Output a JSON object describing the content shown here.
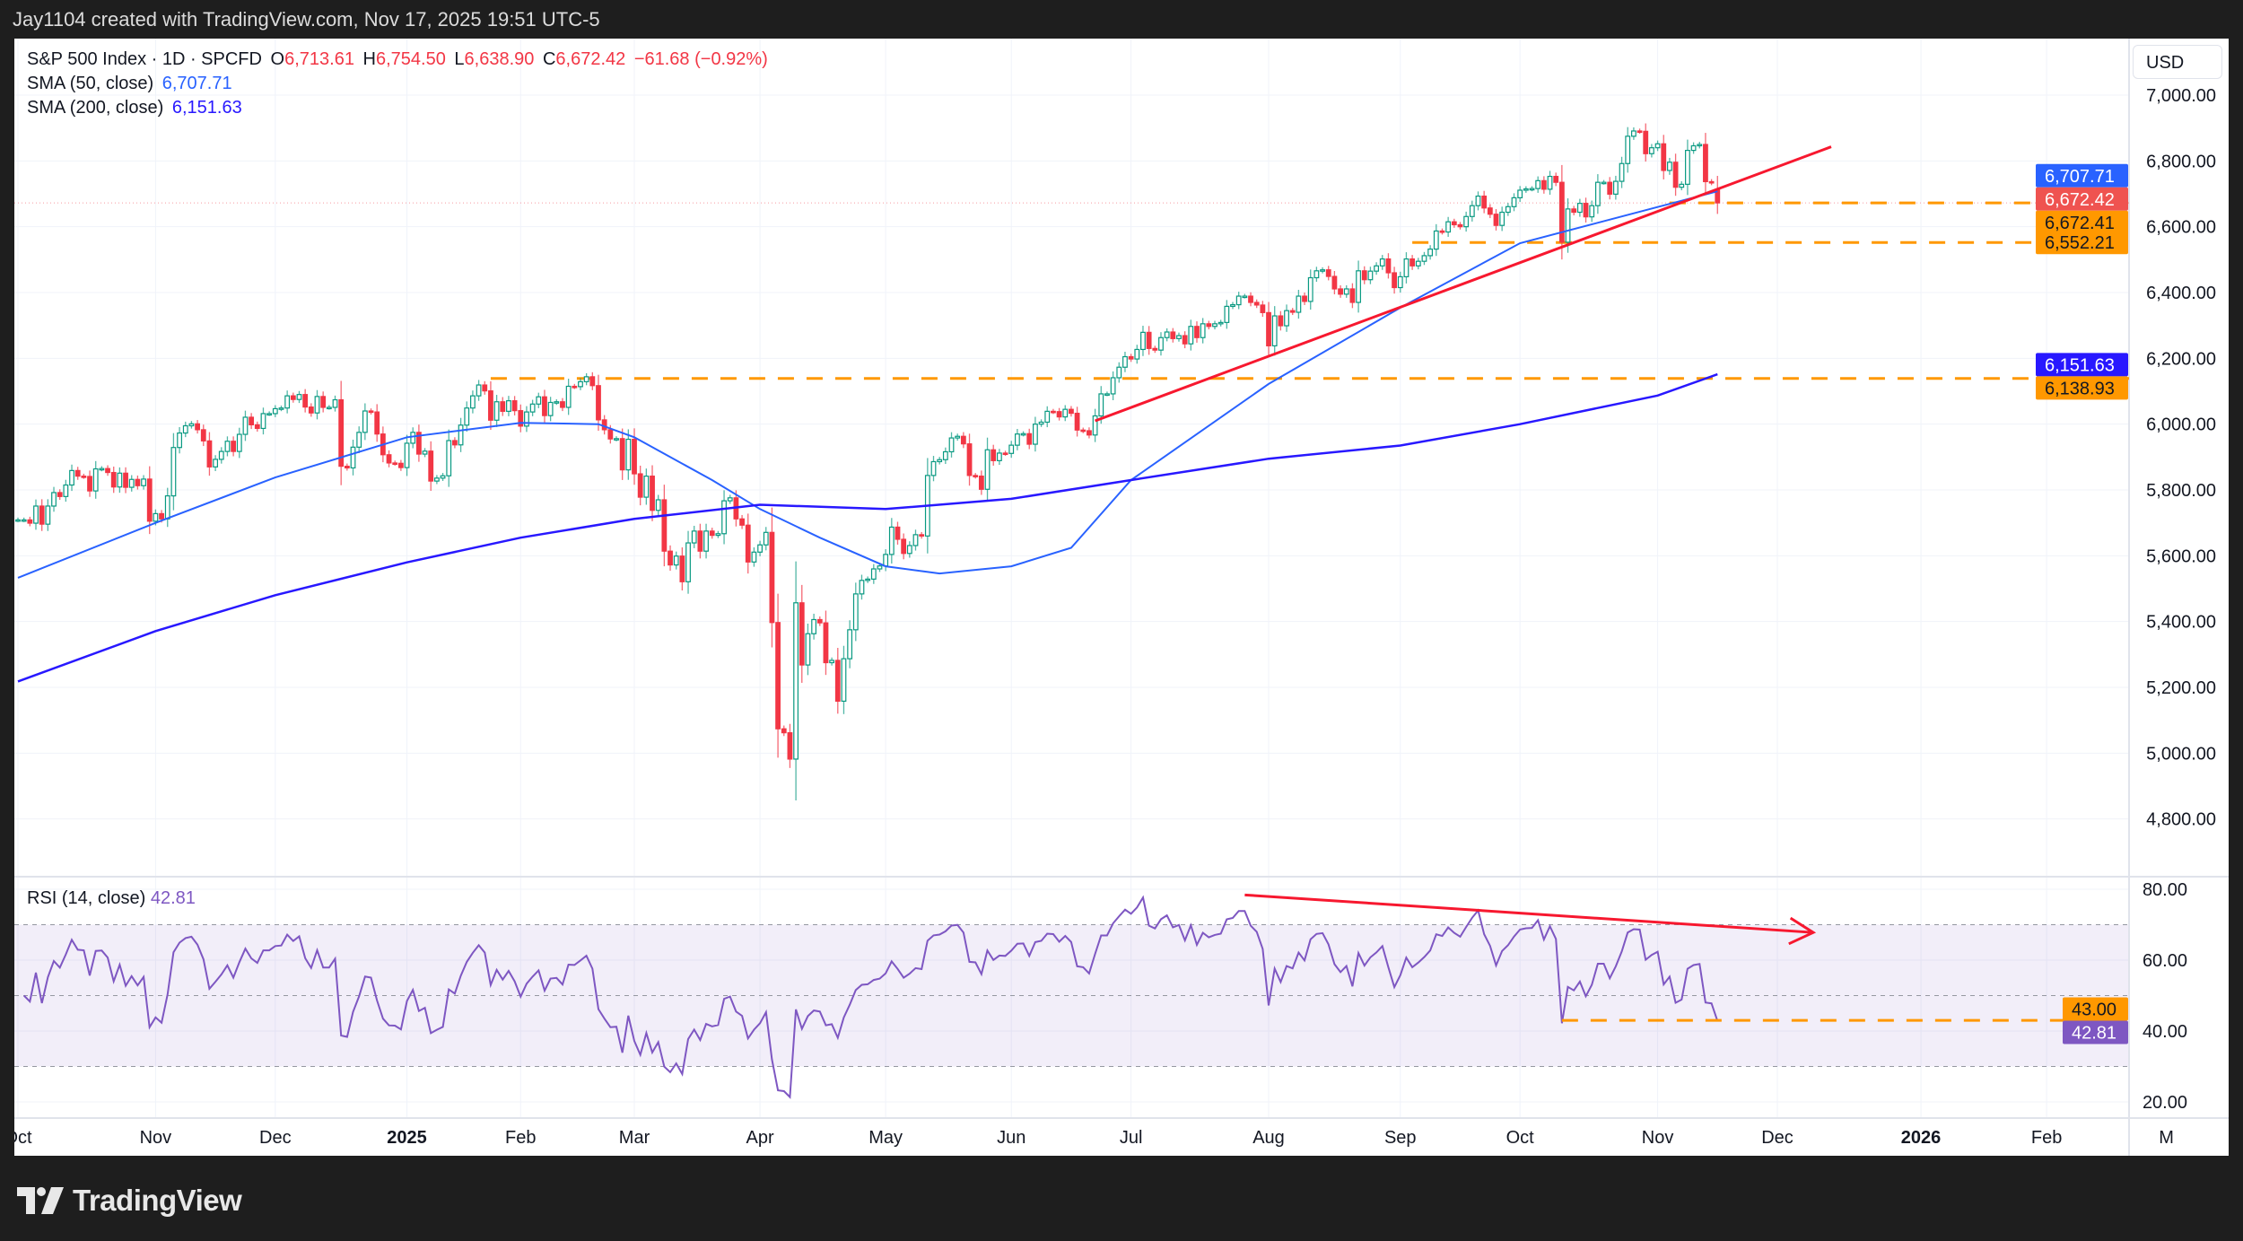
{
  "topbar": {
    "text": "Jay1104 created with TradingView.com, Nov 17, 2025 19:51 UTC-5"
  },
  "legend": {
    "symbol": "S&P 500 Index · 1D · SPCFD",
    "open_label": "O",
    "open": "6,713.61",
    "high_label": "H",
    "high": "6,754.50",
    "low_label": "L",
    "low": "6,638.90",
    "close_label": "C",
    "close": "6,672.42",
    "change": "−61.68 (−0.92%)",
    "sma50_label": "SMA (50, close)",
    "sma50_value": "6,707.71",
    "sma200_label": "SMA (200, close)",
    "sma200_value": "6,151.63",
    "rsi_label": "RSI (14, close)",
    "rsi_value": "42.81"
  },
  "currency": "USD",
  "brand": {
    "name": "TradingView",
    "icon": "tradingview-logo"
  },
  "colors": {
    "up": "#089981",
    "down": "#f23645",
    "sma50": "#2962ff",
    "sma200": "#2818ff",
    "rsi": "#7e57c2",
    "levels": "#ff9800",
    "trendline": "#f7182f"
  },
  "chart_data": {
    "type": "candlestick",
    "last_bar": {
      "date": "2025-11-17",
      "open": 6713.61,
      "high": 6754.5,
      "low": 6638.9,
      "close": 6672.42
    },
    "closes_by_month": {
      "2024-10": [
        5709,
        5709,
        5699,
        5751,
        5696,
        5751,
        5792,
        5780,
        5815,
        5859,
        5842,
        5841,
        5797,
        5864,
        5865,
        5853,
        5809,
        5851,
        5808,
        5832,
        5813,
        5833,
        5705
      ],
      "2024-11": [
        5728,
        5712,
        5782,
        5929,
        5973,
        5995,
        6001,
        5983,
        5949,
        5870,
        5893,
        5917,
        5948,
        5917,
        5969,
        6021,
        5998,
        5987,
        6032,
        6032
      ],
      "2024-12": [
        6047,
        6049,
        6086,
        6075,
        6090,
        6052,
        6034,
        6084,
        6051,
        6051,
        6074,
        5872,
        5867,
        5930,
        5975,
        6040,
        6037,
        5970,
        5907,
        5882,
        5881
      ],
      "2025-01": [
        5868,
        5942,
        5975,
        5909,
        5918,
        5827,
        5836,
        5843,
        5950,
        5937,
        5997,
        6049,
        6086,
        6119,
        6101,
        6012,
        6068,
        6039,
        6071,
        6041
      ],
      "2025-02": [
        5994,
        6037,
        6061,
        6083,
        6026,
        6066,
        6068,
        6051,
        6115,
        6114,
        6129,
        6144,
        6117,
        6013,
        5983,
        5955,
        5956,
        5861,
        5954
      ],
      "2025-03": [
        5849,
        5778,
        5842,
        5738,
        5770,
        5614,
        5572,
        5599,
        5521,
        5639,
        5675,
        5614,
        5675,
        5662,
        5667,
        5767,
        5776,
        5712,
        5693,
        5581,
        5611
      ],
      "2025-04": [
        5633,
        5671,
        5397,
        5074,
        5062,
        4982,
        5457,
        5268,
        5363,
        5406,
        5396,
        5275,
        5282,
        5158,
        5287,
        5375,
        5484,
        5525,
        5529,
        5560,
        5569
      ],
      "2025-05": [
        5604,
        5687,
        5650,
        5607,
        5631,
        5664,
        5660,
        5844,
        5886,
        5892,
        5916,
        5958,
        5963,
        5940,
        5844,
        5842,
        5802,
        5922,
        5889,
        5912,
        5911
      ],
      "2025-06": [
        5936,
        5970,
        5971,
        5939,
        6000,
        6006,
        6039,
        6038,
        6022,
        6045,
        6033,
        5982,
        5980,
        5967,
        6025,
        6092,
        6092,
        6141,
        6173,
        6205
      ],
      "2025-07": [
        6198,
        6227,
        6279,
        6230,
        6225,
        6263,
        6280,
        6260,
        6269,
        6244,
        6297,
        6263,
        6305,
        6297,
        6305,
        6309,
        6358,
        6363,
        6389,
        6389,
        6370,
        6362,
        6339
      ],
      "2025-08": [
        6238,
        6329,
        6299,
        6345,
        6340,
        6389,
        6373,
        6445,
        6466,
        6469,
        6449,
        6411,
        6395,
        6411,
        6370,
        6466,
        6439,
        6465,
        6481,
        6502,
        6460
      ],
      "2025-09": [
        6415,
        6448,
        6502,
        6481,
        6495,
        6512,
        6532,
        6587,
        6584,
        6615,
        6606,
        6600,
        6631,
        6664,
        6693,
        6657,
        6638,
        6604,
        6644,
        6661,
        6688
      ],
      "2025-10": [
        6711,
        6715,
        6716,
        6740,
        6714,
        6753,
        6735,
        6553,
        6654,
        6644,
        6671,
        6630,
        6664,
        6735,
        6735,
        6699,
        6738,
        6792,
        6875,
        6891,
        6890,
        6822,
        6840
      ],
      "2025-11": [
        6852,
        6771,
        6796,
        6720,
        6729,
        6832,
        6846,
        6850,
        6737,
        6734,
        6672.42
      ]
    },
    "sma50": [
      {
        "date": "2024-10-01",
        "value": 5533
      },
      {
        "date": "2024-11-01",
        "value": 5700
      },
      {
        "date": "2024-12-02",
        "value": 5838
      },
      {
        "date": "2025-01-02",
        "value": 5960
      },
      {
        "date": "2025-02-03",
        "value": 6004
      },
      {
        "date": "2025-02-20",
        "value": 6000
      },
      {
        "date": "2025-03-03",
        "value": 5960
      },
      {
        "date": "2025-03-20",
        "value": 5830
      },
      {
        "date": "2025-04-01",
        "value": 5742
      },
      {
        "date": "2025-04-15",
        "value": 5655
      },
      {
        "date": "2025-05-01",
        "value": 5568
      },
      {
        "date": "2025-05-14",
        "value": 5546
      },
      {
        "date": "2025-06-02",
        "value": 5568
      },
      {
        "date": "2025-06-16",
        "value": 5624
      },
      {
        "date": "2025-07-01",
        "value": 5830
      },
      {
        "date": "2025-08-01",
        "value": 6122
      },
      {
        "date": "2025-09-02",
        "value": 6354
      },
      {
        "date": "2025-10-01",
        "value": 6550
      },
      {
        "date": "2025-11-03",
        "value": 6660
      },
      {
        "date": "2025-11-17",
        "value": 6707.71
      }
    ],
    "sma200": [
      {
        "date": "2024-10-01",
        "value": 5218
      },
      {
        "date": "2024-11-01",
        "value": 5371
      },
      {
        "date": "2024-12-02",
        "value": 5480
      },
      {
        "date": "2025-01-02",
        "value": 5580
      },
      {
        "date": "2025-02-03",
        "value": 5655
      },
      {
        "date": "2025-03-03",
        "value": 5712
      },
      {
        "date": "2025-04-01",
        "value": 5755
      },
      {
        "date": "2025-05-01",
        "value": 5742
      },
      {
        "date": "2025-06-02",
        "value": 5773
      },
      {
        "date": "2025-07-01",
        "value": 5830
      },
      {
        "date": "2025-08-01",
        "value": 5895
      },
      {
        "date": "2025-09-02",
        "value": 5935
      },
      {
        "date": "2025-10-01",
        "value": 6000
      },
      {
        "date": "2025-11-03",
        "value": 6087
      },
      {
        "date": "2025-11-17",
        "value": 6151.63
      }
    ],
    "horizontal_levels": [
      {
        "value": 6672.41,
        "label": "6,672.41",
        "from": "2025-11-05"
      },
      {
        "value": 6552.21,
        "label": "6,552.21",
        "from": "2025-09-04"
      },
      {
        "value": 6138.93,
        "label": "6,138.93",
        "from": "2025-01-22"
      }
    ],
    "trendline": {
      "from": {
        "date": "2025-06-20",
        "value": 6010
      },
      "to": {
        "date": "2025-12-12",
        "value": 6843
      }
    },
    "rsi_trendline": {
      "from": {
        "date": "2025-07-28",
        "value": 78.4
      },
      "to": {
        "date": "2025-12-09",
        "value": 67.8
      },
      "arrow": true
    },
    "rsi_level": {
      "value": 43.0,
      "label": "43.00",
      "from": "2025-10-10"
    },
    "rsi_bands": {
      "upper": 70,
      "middle": 50,
      "lower": 30
    },
    "price_axis": {
      "ticks": [
        4800,
        5000,
        5200,
        5400,
        5600,
        5800,
        6000,
        6200,
        6400,
        6600,
        6800,
        7000
      ],
      "tick_labels": [
        "4,800.00",
        "5,000.00",
        "5,200.00",
        "5,400.00",
        "5,600.00",
        "5,800.00",
        "6,000.00",
        "6,200.00",
        "6,400.00",
        "6,600.00",
        "6,800.00",
        "7,000.00"
      ]
    },
    "rsi_axis": {
      "ticks": [
        20,
        40,
        60,
        80
      ],
      "tick_labels": [
        "20.00",
        "40.00",
        "60.00",
        "80.00"
      ]
    },
    "price_labels": [
      {
        "label": "6,707.71",
        "value": 6707.71,
        "bg": "#2962ff",
        "fg": "#ffffff"
      },
      {
        "label": "6,672.42",
        "value": 6672.42,
        "bg": "#ef5350",
        "fg": "#ffffff"
      },
      {
        "label": "6,672.41",
        "value": 6672.41,
        "bg": "#ff9800",
        "fg": "#131722"
      },
      {
        "label": "6,552.21",
        "value": 6552.21,
        "bg": "#ff9800",
        "fg": "#131722"
      },
      {
        "label": "6,151.63",
        "value": 6151.63,
        "bg": "#2818ff",
        "fg": "#ffffff"
      },
      {
        "label": "6,138.93",
        "value": 6138.93,
        "bg": "#ff9800",
        "fg": "#131722"
      }
    ],
    "rsi_labels": [
      {
        "label": "43.00",
        "value": 43.0,
        "bg": "#ff9800",
        "fg": "#131722"
      },
      {
        "label": "42.81",
        "value": 42.81,
        "bg": "#7e57c2",
        "fg": "#ffffff"
      }
    ],
    "time_axis": [
      {
        "label": "Oct",
        "date": "2024-10-01",
        "bold": false
      },
      {
        "label": "Nov",
        "date": "2024-11-01",
        "bold": false
      },
      {
        "label": "Dec",
        "date": "2024-12-02",
        "bold": false
      },
      {
        "label": "2025",
        "date": "2025-01-02",
        "bold": true
      },
      {
        "label": "Feb",
        "date": "2025-02-03",
        "bold": false
      },
      {
        "label": "Mar",
        "date": "2025-03-03",
        "bold": false
      },
      {
        "label": "Apr",
        "date": "2025-04-01",
        "bold": false
      },
      {
        "label": "May",
        "date": "2025-05-01",
        "bold": false
      },
      {
        "label": "Jun",
        "date": "2025-06-02",
        "bold": false
      },
      {
        "label": "Jul",
        "date": "2025-07-01",
        "bold": false
      },
      {
        "label": "Aug",
        "date": "2025-08-01",
        "bold": false
      },
      {
        "label": "Sep",
        "date": "2025-09-02",
        "bold": false
      },
      {
        "label": "Oct",
        "date": "2025-10-01",
        "bold": false
      },
      {
        "label": "Nov",
        "date": "2025-11-03",
        "bold": false
      },
      {
        "label": "Dec",
        "date": "2025-12-01",
        "bold": false
      },
      {
        "label": "2026",
        "date": "2026-01-02",
        "bold": true
      },
      {
        "label": "Feb",
        "date": "2026-02-02",
        "bold": false
      },
      {
        "label": "M",
        "date": "2026-03-02",
        "bold": false
      }
    ]
  }
}
